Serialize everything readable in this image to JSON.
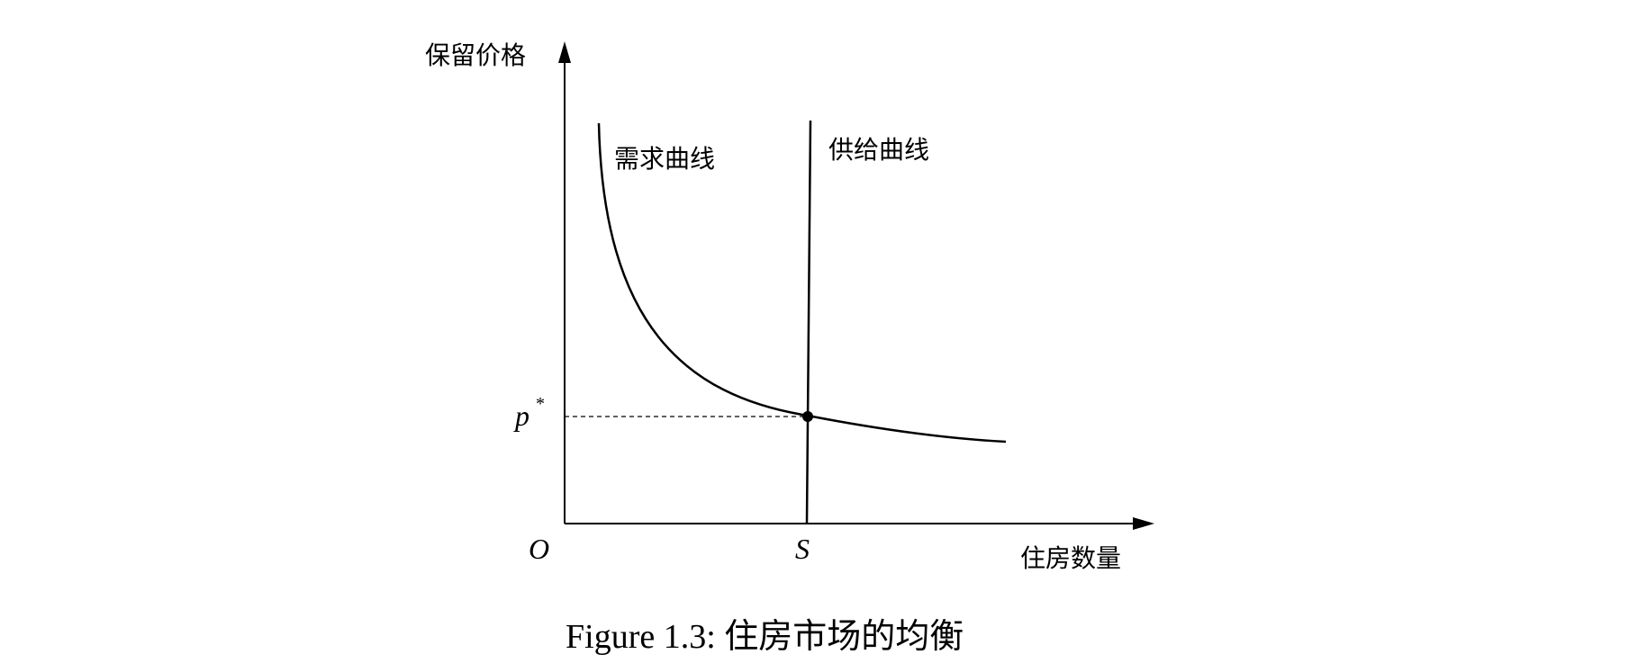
{
  "figure": {
    "caption": "Figure 1.3: 住房市场的均衡",
    "y_axis_label": "保留价格",
    "x_axis_label": "住房数量",
    "origin_label": "O",
    "supply_tick_label": "S",
    "price_label_base": "p",
    "price_label_sup": "*",
    "demand_curve_label": "需求曲线",
    "supply_curve_label": "供给曲线"
  },
  "colors": {
    "line": "#000000",
    "background": "#ffffff"
  }
}
